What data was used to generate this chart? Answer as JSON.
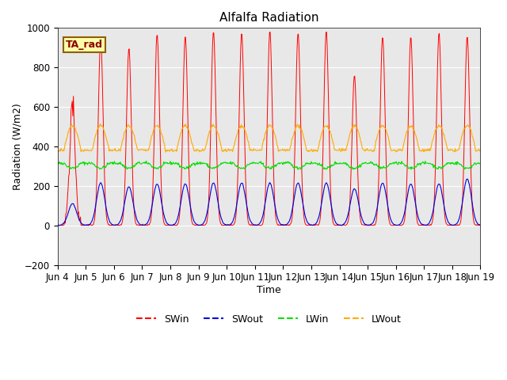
{
  "title": "Alfalfa Radiation",
  "xlabel": "Time",
  "ylabel": "Radiation (W/m2)",
  "ylim": [
    -200,
    1000
  ],
  "xlim": [
    0,
    360
  ],
  "annotation_text": "TA_rad",
  "xtick_positions": [
    0,
    24,
    48,
    72,
    96,
    120,
    144,
    168,
    192,
    216,
    240,
    264,
    288,
    312,
    336,
    360
  ],
  "xtick_labels": [
    "Jun 4",
    "Jun 5",
    "Jun 6",
    "Jun 7",
    "Jun 8",
    "Jun 9",
    "Jun 10",
    "Jun 11",
    "Jun 12",
    "Jun 13",
    "Jun 14",
    "Jun 15",
    "Jun 16",
    "Jun 17",
    "Jun 18",
    "Jun 19"
  ],
  "legend_labels": [
    "SWin",
    "SWout",
    "LWin",
    "LWout"
  ],
  "line_colors": [
    "#ff0000",
    "#0000dd",
    "#00dd00",
    "#ffaa00"
  ],
  "bg_color": "#e8e8e8",
  "n_days": 15,
  "hours_per_day": 24,
  "sw_daylight_start": 5.5,
  "sw_daylight_end": 20.0,
  "SWin_peaks": [
    570,
    940,
    900,
    970,
    960,
    985,
    975,
    985,
    975,
    985,
    760,
    960,
    955,
    975,
    960
  ],
  "SWout_peaks": [
    110,
    215,
    195,
    210,
    210,
    215,
    215,
    215,
    215,
    215,
    185,
    215,
    210,
    210,
    235
  ],
  "LWin_night": 315,
  "LWin_day_dip": 25,
  "LWout_night": 380,
  "LWout_day_peak": 125,
  "grid_color": "#ffffff",
  "ytick_labels": [
    -200,
    0,
    200,
    400,
    600,
    800,
    1000
  ]
}
